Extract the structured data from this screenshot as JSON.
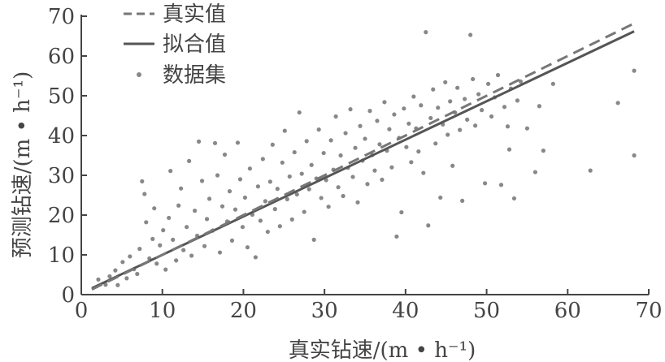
{
  "chart_data": {
    "type": "scatter",
    "xlabel": "真实钻速/(m • h⁻¹)",
    "ylabel": "预测钻速/(m • h⁻¹)",
    "xlim": [
      0,
      70
    ],
    "ylim": [
      0,
      70
    ],
    "xticks": [
      "0",
      "10",
      "20",
      "30",
      "40",
      "50",
      "60",
      "70"
    ],
    "yticks": [
      "0",
      "10",
      "20",
      "30",
      "40",
      "50",
      "60",
      "70"
    ],
    "legend_position": "top-left",
    "grid": false,
    "colors": {
      "points": "#888888",
      "true_line": "#777777",
      "fit_line": "#555555",
      "axis": "#444444"
    },
    "series": [
      {
        "name": "真实值",
        "kind": "line",
        "style": "dashed",
        "x": [
          1.3,
          68.2
        ],
        "y": [
          1.3,
          68.2
        ]
      },
      {
        "name": "拟合值",
        "kind": "line",
        "style": "solid",
        "x": [
          1.3,
          68.2
        ],
        "y": [
          1.6,
          66.2
        ]
      },
      {
        "name": "数据集",
        "kind": "points",
        "points": [
          [
            2.1,
            3.8
          ],
          [
            3.0,
            2.5
          ],
          [
            3.5,
            4.6
          ],
          [
            4.2,
            6.1
          ],
          [
            4.5,
            2.4
          ],
          [
            5.1,
            8.2
          ],
          [
            5.6,
            4.1
          ],
          [
            6.0,
            9.6
          ],
          [
            6.5,
            6.4
          ],
          [
            6.9,
            5.2
          ],
          [
            7.2,
            11.5
          ],
          [
            7.5,
            28.5
          ],
          [
            7.8,
            25.3
          ],
          [
            8.0,
            18.2
          ],
          [
            8.4,
            9.1
          ],
          [
            8.8,
            14.0
          ],
          [
            9.0,
            21.7
          ],
          [
            9.3,
            7.8
          ],
          [
            9.7,
            12.4
          ],
          [
            10.1,
            16.2
          ],
          [
            10.4,
            6.3
          ],
          [
            10.8,
            19.3
          ],
          [
            11.0,
            31.1
          ],
          [
            11.3,
            13.8
          ],
          [
            11.7,
            8.6
          ],
          [
            12.0,
            22.4
          ],
          [
            12.3,
            26.7
          ],
          [
            12.6,
            11.2
          ],
          [
            13.0,
            17.0
          ],
          [
            13.3,
            33.6
          ],
          [
            13.6,
            9.8
          ],
          [
            14.0,
            21.1
          ],
          [
            14.3,
            14.8
          ],
          [
            14.5,
            38.5
          ],
          [
            14.9,
            28.6
          ],
          [
            15.2,
            12.2
          ],
          [
            15.5,
            19.0
          ],
          [
            15.8,
            24.1
          ],
          [
            16.2,
            16.1
          ],
          [
            16.5,
            38.1
          ],
          [
            16.8,
            30.0
          ],
          [
            17.1,
            10.6
          ],
          [
            17.4,
            22.2
          ],
          [
            17.7,
            35.2
          ],
          [
            18.0,
            18.4
          ],
          [
            18.3,
            26.0
          ],
          [
            18.6,
            13.6
          ],
          [
            19.0,
            21.4
          ],
          [
            19.3,
            38.2
          ],
          [
            19.6,
            29.0
          ],
          [
            19.9,
            17.0
          ],
          [
            20.2,
            24.4
          ],
          [
            20.5,
            11.9
          ],
          [
            20.8,
            31.7
          ],
          [
            21.1,
            20.1
          ],
          [
            21.5,
            9.4
          ],
          [
            21.8,
            27.2
          ],
          [
            22.1,
            18.6
          ],
          [
            22.4,
            34.1
          ],
          [
            22.7,
            23.5
          ],
          [
            23.0,
            15.8
          ],
          [
            23.3,
            28.4
          ],
          [
            23.6,
            37.7
          ],
          [
            23.9,
            21.5
          ],
          [
            24.2,
            26.6
          ],
          [
            24.5,
            17.2
          ],
          [
            24.8,
            33.2
          ],
          [
            25.1,
            41.2
          ],
          [
            25.4,
            24.0
          ],
          [
            25.7,
            29.7
          ],
          [
            26.0,
            18.9
          ],
          [
            26.3,
            35.8
          ],
          [
            26.6,
            25.2
          ],
          [
            26.9,
            45.8
          ],
          [
            27.2,
            30.4
          ],
          [
            27.5,
            20.8
          ],
          [
            27.8,
            38.6
          ],
          [
            28.1,
            26.5
          ],
          [
            28.4,
            32.6
          ],
          [
            28.7,
            13.8
          ],
          [
            29.0,
            29.2
          ],
          [
            29.3,
            41.5
          ],
          [
            29.6,
            24.3
          ],
          [
            29.9,
            35.6
          ],
          [
            30.2,
            28.8
          ],
          [
            30.5,
            22.1
          ],
          [
            30.8,
            38.8
          ],
          [
            31.1,
            31.4
          ],
          [
            31.4,
            44.8
          ],
          [
            31.7,
            27.0
          ],
          [
            32.0,
            35.0
          ],
          [
            32.3,
            24.8
          ],
          [
            32.6,
            40.6
          ],
          [
            32.9,
            31.9
          ],
          [
            33.2,
            46.6
          ],
          [
            33.5,
            29.6
          ],
          [
            33.8,
            36.9
          ],
          [
            34.1,
            23.2
          ],
          [
            34.4,
            42.4
          ],
          [
            34.7,
            33.7
          ],
          [
            35.0,
            39.2
          ],
          [
            35.3,
            27.8
          ],
          [
            35.6,
            46.2
          ],
          [
            35.9,
            35.1
          ],
          [
            36.2,
            31.2
          ],
          [
            36.5,
            43.7
          ],
          [
            36.8,
            37.8
          ],
          [
            37.1,
            28.9
          ],
          [
            37.4,
            48.4
          ],
          [
            37.7,
            36.2
          ],
          [
            38.0,
            41.6
          ],
          [
            38.3,
            32.0
          ],
          [
            38.6,
            45.3
          ],
          [
            38.9,
            14.6
          ],
          [
            39.2,
            39.4
          ],
          [
            39.5,
            20.7
          ],
          [
            39.8,
            46.8
          ],
          [
            40.1,
            37.1
          ],
          [
            40.4,
            43.0
          ],
          [
            40.7,
            33.3
          ],
          [
            41.0,
            49.8
          ],
          [
            41.3,
            41.8
          ],
          [
            41.6,
            36.0
          ],
          [
            41.9,
            47.6
          ],
          [
            42.2,
            30.6
          ],
          [
            42.5,
            66.0
          ],
          [
            42.8,
            17.4
          ],
          [
            43.1,
            44.4
          ],
          [
            43.4,
            51.6
          ],
          [
            43.7,
            38.0
          ],
          [
            44.0,
            47.0
          ],
          [
            44.3,
            24.4
          ],
          [
            44.6,
            42.8
          ],
          [
            44.9,
            53.4
          ],
          [
            45.2,
            40.2
          ],
          [
            45.5,
            48.6
          ],
          [
            45.8,
            32.4
          ],
          [
            46.1,
            45.8
          ],
          [
            46.4,
            52.0
          ],
          [
            46.7,
            41.4
          ],
          [
            47.0,
            23.6
          ],
          [
            47.3,
            49.2
          ],
          [
            47.6,
            44.0
          ],
          [
            48.0,
            65.3
          ],
          [
            48.3,
            54.2
          ],
          [
            48.6,
            42.5
          ],
          [
            49.0,
            50.4
          ],
          [
            49.4,
            46.4
          ],
          [
            49.8,
            28.0
          ],
          [
            50.2,
            53.0
          ],
          [
            50.6,
            44.8
          ],
          [
            51.0,
            49.6
          ],
          [
            51.4,
            55.2
          ],
          [
            51.8,
            27.6
          ],
          [
            52.2,
            47.2
          ],
          [
            52.6,
            42.3
          ],
          [
            53.0,
            51.8
          ],
          [
            53.4,
            24.2
          ],
          [
            53.8,
            48.8
          ],
          [
            54.2,
            53.6
          ],
          [
            55.0,
            41.8
          ],
          [
            56.0,
            30.8
          ],
          [
            56.5,
            47.4
          ],
          [
            57.0,
            36.2
          ],
          [
            58.2,
            53.0
          ],
          [
            62.8,
            31.2
          ],
          [
            66.2,
            48.2
          ],
          [
            68.2,
            56.3
          ],
          [
            68.2,
            35.0
          ],
          [
            52.8,
            36.5
          ]
        ]
      }
    ]
  }
}
